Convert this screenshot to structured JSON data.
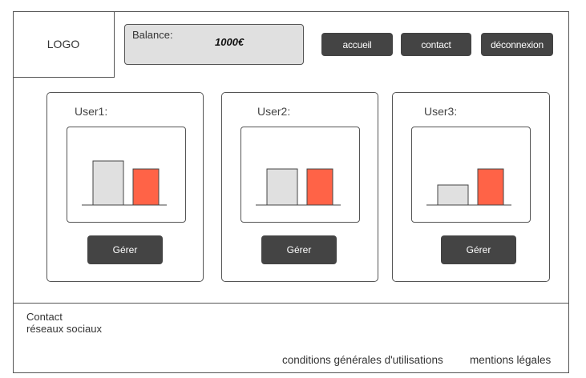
{
  "header": {
    "logo_text": "LOGO",
    "balance_label": "Balance:",
    "balance_value": "1000€",
    "nav": [
      "accueil",
      "contact",
      "déconnexion"
    ]
  },
  "users": [
    {
      "label": "User1:",
      "button": "Gérer",
      "bars": [
        0.55,
        0.45
      ]
    },
    {
      "label": "User2:",
      "button": "Gérer",
      "bars": [
        0.45,
        0.45
      ]
    },
    {
      "label": "User3:",
      "button": "Gérer",
      "bars": [
        0.25,
        0.45
      ]
    }
  ],
  "colors": {
    "bar_primary": "#e0e0e0",
    "bar_accent": "#ff6347",
    "button_bg": "#444444"
  },
  "footer": {
    "contact": "Contact",
    "social": "réseaux sociaux",
    "terms": "conditions générales d'utilisations",
    "legal": "mentions légales"
  }
}
